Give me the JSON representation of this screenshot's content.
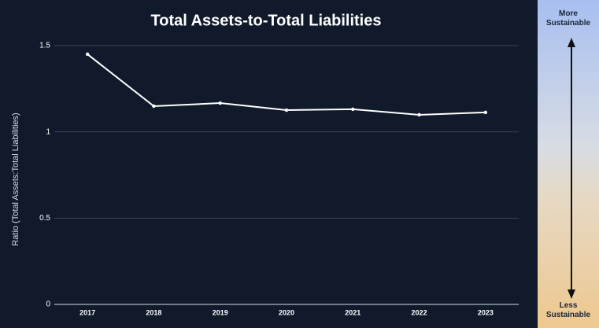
{
  "chart_data": {
    "type": "line",
    "title": "Total Assets-to-Total Liabilities",
    "y_label": "Ratio (Total Assets:Total Liabilities)",
    "categories": [
      "2017",
      "2018",
      "2019",
      "2020",
      "2021",
      "2022",
      "2023"
    ],
    "values": [
      1.45,
      1.149,
      1.167,
      1.126,
      1.131,
      1.099,
      1.113
    ],
    "color": "#ffffff",
    "ylim": [
      0,
      1.5
    ],
    "yticks": [
      0,
      0.5,
      1,
      1.5
    ],
    "grid": true
  },
  "scale": {
    "top": "More Sustainable",
    "bottom": "Less Sustainable"
  }
}
